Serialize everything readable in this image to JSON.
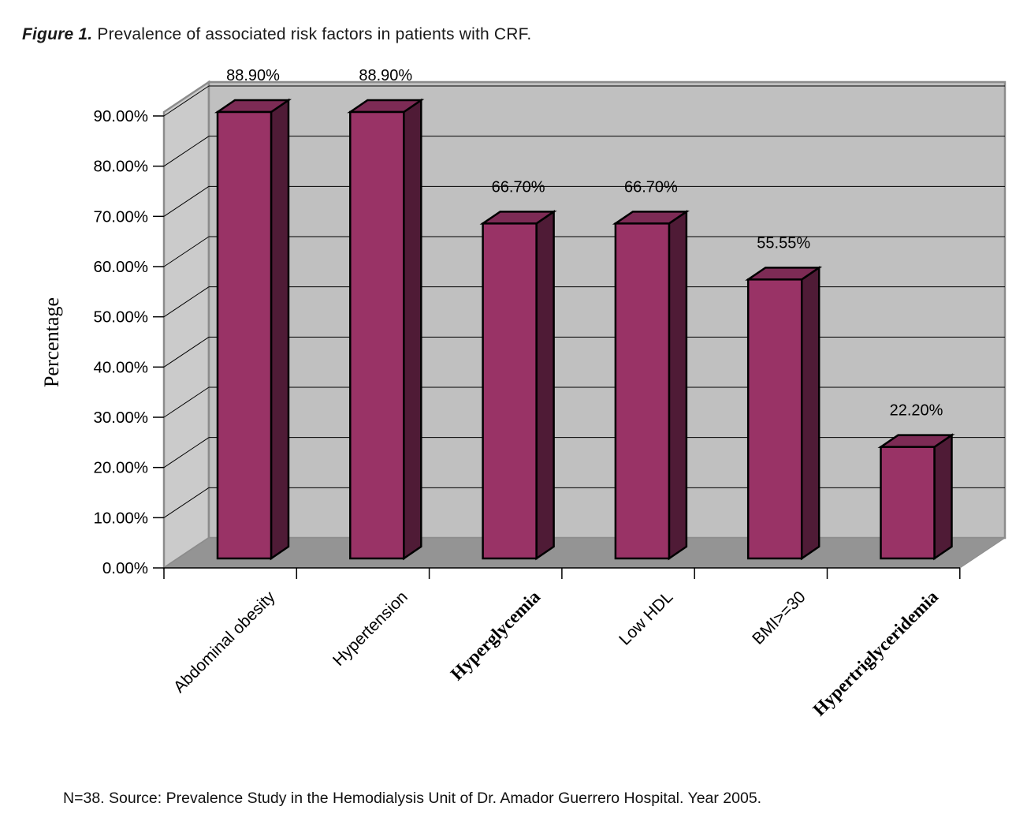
{
  "figure": {
    "title_prefix": "Figure 1.",
    "title_rest": " Prevalence of associated risk factors in patients with CRF.",
    "footnote": "N=38. Source: Prevalence Study in the Hemodialysis Unit of Dr. Amador Guerrero Hospital. Year 2005."
  },
  "chart_data": {
    "type": "bar",
    "style": "3d-column",
    "title": "Figure 1. Prevalence of associated risk factors in patients with CRF.",
    "ylabel": "Percentage",
    "xlabel": "",
    "ylim": [
      0,
      90
    ],
    "ytick_step": 10,
    "ytick_labels": [
      "0.00%",
      "10.00%",
      "20.00%",
      "30.00%",
      "40.00%",
      "50.00%",
      "60.00%",
      "70.00%",
      "80.00%",
      "90.00%"
    ],
    "grid": true,
    "legend": false,
    "categories": [
      "Abdominal obesity",
      "Hypertension",
      "Hyperglycemia",
      "Low HDL",
      "BMI>=30",
      "Hypertriglyceridemia"
    ],
    "category_font": [
      "sans",
      "sans",
      "serif",
      "sans",
      "sans",
      "serif"
    ],
    "values": [
      88.9,
      88.9,
      66.7,
      66.7,
      55.55,
      22.2
    ],
    "data_labels": [
      "88.90%",
      "88.90%",
      "66.70%",
      "66.70%",
      "55.55%",
      "22.20%"
    ],
    "colors": {
      "bar_front": "#993366",
      "bar_top": "#7D2B55",
      "bar_side": "#4F1B36",
      "bar_outline": "#000000",
      "wall_back": "#C0C0C0",
      "wall_left": "#CBCBCB",
      "floor": "#949494",
      "wall_edge": "#8C8C8C",
      "gridline": "#000000",
      "text": "#000000"
    },
    "footnote": "N=38. Source: Prevalence Study in the Hemodialysis Unit of Dr. Amador Guerrero Hospital. Year 2005."
  }
}
